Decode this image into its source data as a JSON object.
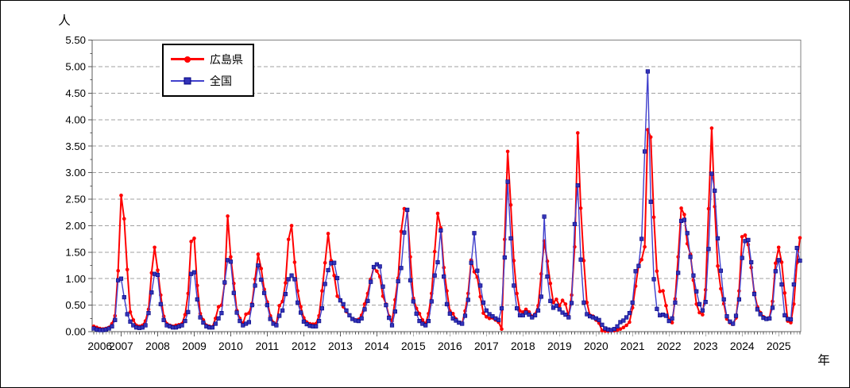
{
  "chart_data": {
    "type": "line",
    "title": "",
    "ylabel": "人",
    "xlabel": "年",
    "x_start_month": "2006-04",
    "x_end_month": "2025-08",
    "x_interval": "monthly",
    "x_tick_years": [
      2006,
      2007,
      2008,
      2009,
      2010,
      2011,
      2012,
      2013,
      2014,
      2015,
      2016,
      2017,
      2018,
      2019,
      2020,
      2021,
      2022,
      2023,
      2024,
      2025
    ],
    "ylim": [
      0,
      5.5
    ],
    "y_tick_step": 0.5,
    "y_minor_tick_step": 0.25,
    "y_tick_format": "two-decimals",
    "grid": "horizontal-dashed",
    "legend_position": "top-left-inside",
    "colors": {
      "hiroshima": "#FF0000",
      "zenkoku": "#4040CC",
      "zenkoku_marker": "#3333B8",
      "grid": "#A0A0A0",
      "frame": "#808080",
      "axis": "#595959"
    },
    "series": [
      {
        "name": "広島県",
        "color": "#FF0000",
        "marker": "circle",
        "values": [
          0.1,
          0.08,
          0.06,
          0.05,
          0.06,
          0.08,
          0.15,
          0.3,
          1.15,
          2.57,
          2.13,
          1.17,
          0.37,
          0.22,
          0.12,
          0.1,
          0.12,
          0.2,
          0.42,
          1.11,
          1.59,
          1.16,
          0.69,
          0.29,
          0.15,
          0.12,
          0.1,
          0.12,
          0.13,
          0.15,
          0.32,
          0.72,
          1.7,
          1.76,
          0.87,
          0.34,
          0.22,
          0.12,
          0.1,
          0.09,
          0.25,
          0.47,
          0.5,
          0.91,
          2.18,
          1.41,
          0.91,
          0.4,
          0.25,
          0.15,
          0.33,
          0.35,
          0.53,
          0.99,
          1.46,
          1.19,
          0.8,
          0.56,
          0.3,
          0.17,
          0.14,
          0.49,
          0.57,
          0.92,
          1.74,
          2.0,
          1.31,
          0.77,
          0.47,
          0.26,
          0.18,
          0.15,
          0.14,
          0.15,
          0.3,
          0.77,
          1.3,
          1.85,
          1.34,
          1.06,
          0.67,
          0.6,
          0.47,
          0.38,
          0.31,
          0.24,
          0.22,
          0.23,
          0.31,
          0.52,
          0.72,
          0.99,
          1.21,
          1.14,
          1.04,
          0.67,
          0.52,
          0.29,
          0.2,
          0.6,
          1.01,
          1.89,
          2.32,
          2.28,
          1.41,
          0.63,
          0.44,
          0.34,
          0.22,
          0.15,
          0.34,
          0.72,
          1.51,
          2.23,
          1.96,
          1.21,
          0.77,
          0.39,
          0.34,
          0.24,
          0.17,
          0.15,
          0.39,
          0.72,
          1.35,
          1.13,
          1.03,
          0.66,
          0.35,
          0.28,
          0.25,
          0.26,
          0.22,
          0.18,
          0.05,
          1.74,
          3.4,
          2.39,
          1.34,
          0.72,
          0.39,
          0.37,
          0.42,
          0.37,
          0.29,
          0.33,
          0.49,
          1.09,
          1.71,
          1.33,
          0.91,
          0.55,
          0.61,
          0.49,
          0.59,
          0.52,
          0.29,
          0.69,
          1.6,
          3.75,
          2.33,
          1.34,
          0.55,
          0.31,
          0.29,
          0.22,
          0.16,
          0.02,
          0.01,
          0.01,
          0.02,
          0.02,
          0.03,
          0.05,
          0.08,
          0.12,
          0.18,
          0.45,
          0.86,
          1.25,
          1.36,
          1.6,
          3.81,
          3.67,
          2.16,
          1.14,
          0.76,
          0.77,
          0.49,
          0.22,
          0.17,
          0.62,
          1.41,
          2.33,
          2.21,
          1.66,
          1.46,
          0.97,
          0.52,
          0.36,
          0.32,
          0.79,
          2.32,
          3.84,
          2.36,
          1.24,
          0.81,
          0.53,
          0.24,
          0.17,
          0.14,
          0.26,
          0.77,
          1.79,
          1.82,
          1.64,
          1.21,
          0.74,
          0.47,
          0.36,
          0.28,
          0.25,
          0.26,
          0.57,
          1.29,
          1.59,
          1.31,
          0.73,
          0.2,
          0.17,
          0.52,
          1.3,
          1.77
        ]
      },
      {
        "name": "全国",
        "color": "#4040CC",
        "marker": "square",
        "values": [
          0.06,
          0.04,
          0.03,
          0.03,
          0.04,
          0.06,
          0.1,
          0.22,
          0.97,
          1.0,
          0.65,
          0.33,
          0.19,
          0.12,
          0.08,
          0.07,
          0.08,
          0.12,
          0.35,
          0.74,
          1.09,
          1.07,
          0.52,
          0.22,
          0.12,
          0.1,
          0.08,
          0.08,
          0.1,
          0.12,
          0.2,
          0.37,
          1.09,
          1.12,
          0.61,
          0.27,
          0.17,
          0.1,
          0.08,
          0.08,
          0.15,
          0.25,
          0.35,
          0.93,
          1.35,
          1.32,
          0.73,
          0.36,
          0.2,
          0.12,
          0.15,
          0.18,
          0.5,
          0.87,
          1.25,
          0.98,
          0.73,
          0.5,
          0.24,
          0.15,
          0.12,
          0.3,
          0.4,
          0.71,
          0.99,
          1.06,
          0.99,
          0.55,
          0.36,
          0.19,
          0.14,
          0.11,
          0.1,
          0.1,
          0.2,
          0.44,
          0.9,
          1.16,
          1.29,
          1.3,
          1.01,
          0.59,
          0.52,
          0.4,
          0.31,
          0.24,
          0.21,
          0.2,
          0.25,
          0.42,
          0.58,
          0.94,
          1.22,
          1.27,
          1.23,
          0.85,
          0.5,
          0.26,
          0.12,
          0.38,
          0.95,
          1.2,
          1.87,
          2.3,
          0.97,
          0.57,
          0.34,
          0.2,
          0.15,
          0.12,
          0.2,
          0.57,
          1.06,
          1.31,
          1.91,
          1.04,
          0.52,
          0.34,
          0.25,
          0.21,
          0.17,
          0.15,
          0.3,
          0.6,
          1.3,
          1.86,
          1.15,
          0.87,
          0.55,
          0.4,
          0.33,
          0.29,
          0.25,
          0.22,
          0.44,
          1.4,
          2.83,
          1.76,
          0.87,
          0.44,
          0.31,
          0.31,
          0.36,
          0.32,
          0.27,
          0.31,
          0.4,
          0.66,
          2.17,
          1.04,
          0.58,
          0.45,
          0.49,
          0.42,
          0.36,
          0.32,
          0.27,
          0.54,
          2.03,
          2.76,
          1.36,
          0.55,
          0.33,
          0.29,
          0.27,
          0.25,
          0.22,
          0.13,
          0.06,
          0.04,
          0.03,
          0.05,
          0.1,
          0.18,
          0.21,
          0.27,
          0.35,
          0.55,
          1.14,
          1.24,
          1.75,
          3.4,
          4.91,
          2.45,
          0.99,
          0.43,
          0.31,
          0.32,
          0.3,
          0.2,
          0.25,
          0.55,
          1.11,
          2.09,
          2.11,
          1.86,
          1.41,
          1.06,
          0.76,
          0.52,
          0.4,
          0.56,
          1.56,
          2.98,
          2.66,
          1.76,
          1.15,
          0.61,
          0.29,
          0.19,
          0.15,
          0.3,
          0.61,
          1.39,
          1.71,
          1.73,
          1.31,
          0.71,
          0.42,
          0.33,
          0.26,
          0.24,
          0.25,
          0.45,
          1.14,
          1.35,
          0.89,
          0.31,
          0.24,
          0.23,
          0.89,
          1.58,
          1.34
        ]
      }
    ]
  }
}
